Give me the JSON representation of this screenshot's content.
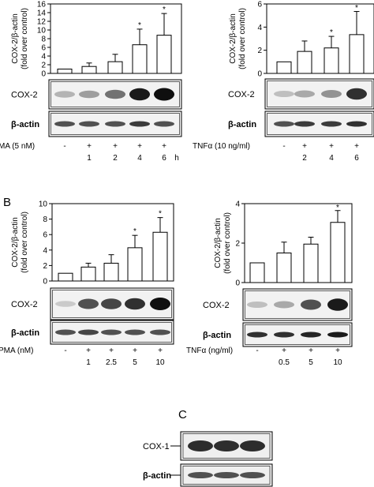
{
  "panel_letters": {
    "b": "B",
    "c": "C"
  },
  "ylabel_line1": "COX-2/β-actin",
  "ylabel_line2": "(fold over control)",
  "labels": {
    "cox2": "COX-2",
    "cox1": "COX-1",
    "bactin": "β-actin"
  },
  "chart_data": [
    {
      "panel": "A-left",
      "type": "bar",
      "row_label": "MA (5 nM)",
      "signs": [
        "-",
        "+",
        "+",
        "+",
        "+"
      ],
      "categories": [
        "",
        "1",
        "2",
        "4",
        "6"
      ],
      "unit": "h",
      "values": [
        1.0,
        1.6,
        2.7,
        6.6,
        8.8
      ],
      "errors": [
        0,
        0.8,
        1.7,
        3.6,
        5.0
      ],
      "significant": [
        false,
        false,
        false,
        true,
        true
      ],
      "ylim": [
        0,
        16
      ],
      "yticks": [
        0,
        2,
        4,
        6,
        8,
        10,
        12,
        14,
        16
      ],
      "ylabel": "COX-2/β-actin (fold over control)"
    },
    {
      "panel": "A-right",
      "type": "bar",
      "row_label": "TNFα (10 ng/ml)",
      "signs": [
        "-",
        "+",
        "+",
        "+"
      ],
      "categories": [
        "",
        "2",
        "4",
        "6"
      ],
      "unit": "h",
      "values": [
        1.0,
        1.9,
        2.2,
        3.35
      ],
      "errors": [
        0,
        0.9,
        1.0,
        2.0
      ],
      "significant": [
        false,
        false,
        true,
        true
      ],
      "ylim": [
        0,
        6
      ],
      "yticks": [
        0,
        2,
        4,
        6
      ],
      "ylabel": "COX-2/β-actin (fold over control)"
    },
    {
      "panel": "B-left",
      "type": "bar",
      "row_label": "PMA (nM)",
      "signs": [
        "-",
        "+",
        "+",
        "+",
        "+"
      ],
      "categories": [
        "",
        "1",
        "2.5",
        "5",
        "10"
      ],
      "unit": "",
      "values": [
        1.0,
        1.8,
        2.3,
        4.3,
        6.3
      ],
      "errors": [
        0,
        0.5,
        1.1,
        1.6,
        1.9
      ],
      "significant": [
        false,
        false,
        false,
        true,
        true
      ],
      "ylim": [
        0,
        10
      ],
      "yticks": [
        0,
        2,
        4,
        6,
        8,
        10
      ],
      "ylabel": "COX-2/β-actin (fold over control)"
    },
    {
      "panel": "B-right",
      "type": "bar",
      "row_label": "TNFα (ng/ml)",
      "signs": [
        "-",
        "+",
        "+",
        "+"
      ],
      "categories": [
        "",
        "0.5",
        "5",
        "10"
      ],
      "unit": "",
      "values": [
        1.0,
        1.5,
        1.95,
        3.05
      ],
      "errors": [
        0,
        0.55,
        0.35,
        0.6
      ],
      "significant": [
        false,
        false,
        false,
        true
      ],
      "ylim": [
        0,
        4
      ],
      "yticks": [
        0,
        2,
        4
      ],
      "ylabel": "COX-2/β-actin (fold over control)"
    }
  ]
}
